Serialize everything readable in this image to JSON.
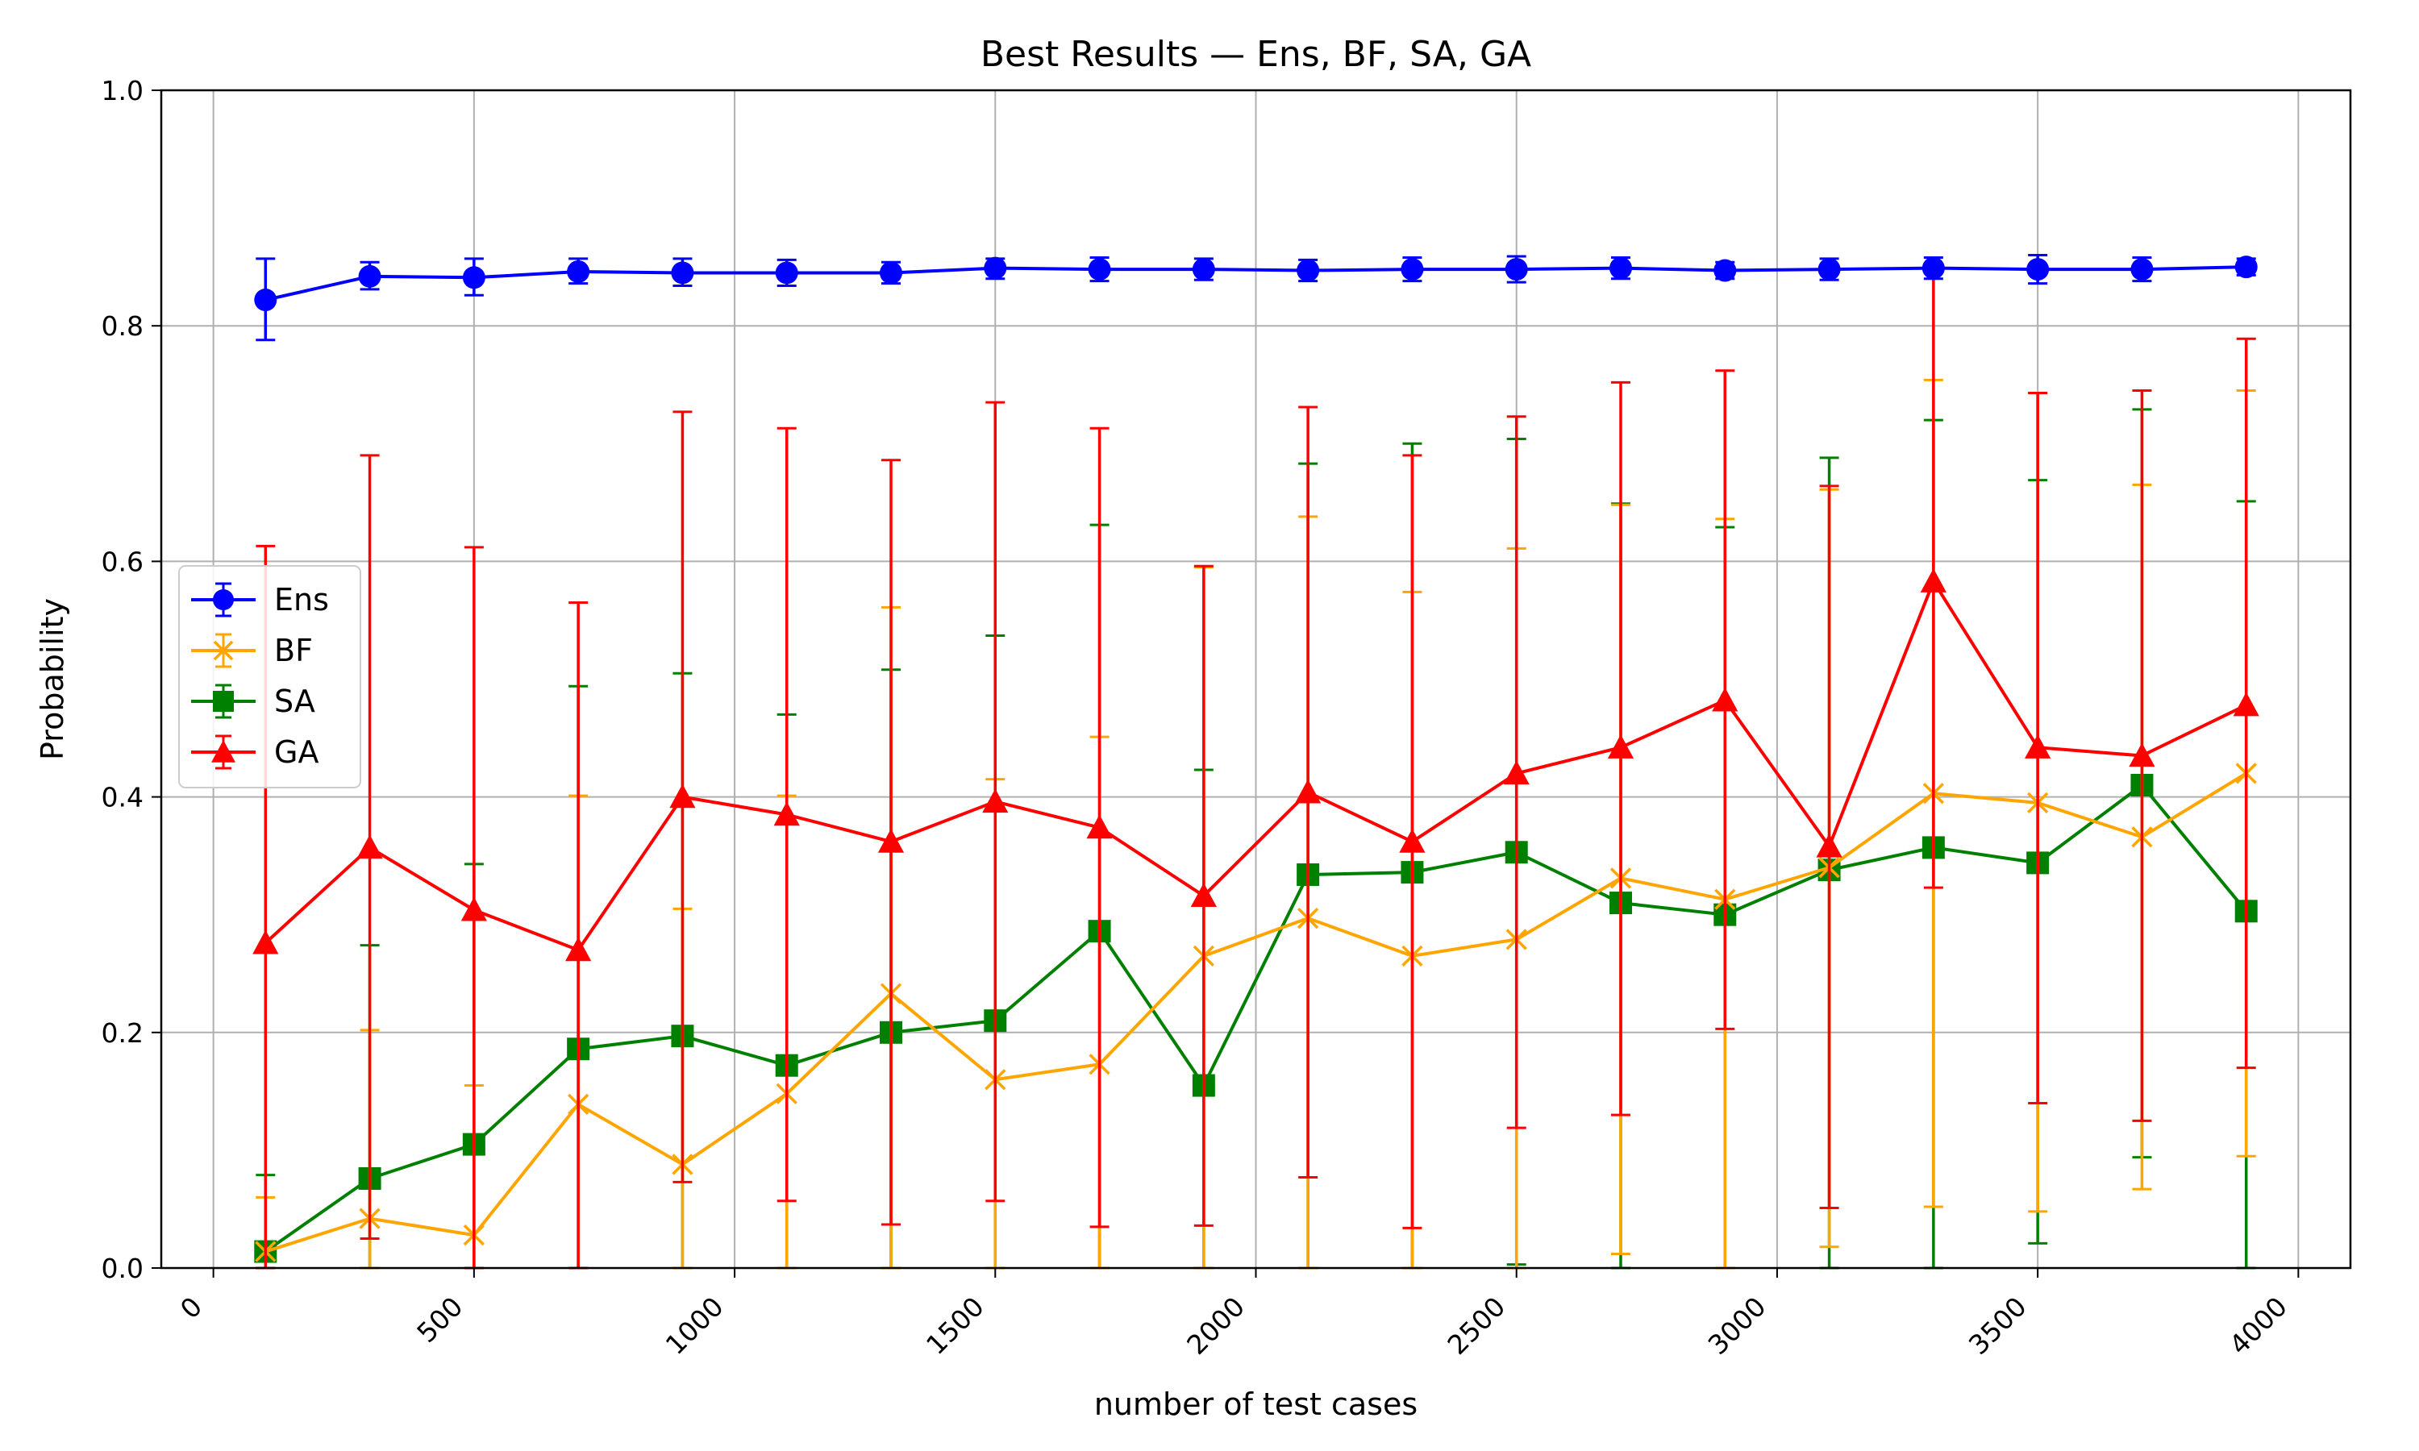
{
  "chart_data": {
    "type": "line",
    "title": "Best Results — Ens, BF, SA, GA",
    "xlabel": "number of test cases",
    "ylabel": "Probability",
    "xlim": [
      -100,
      4100
    ],
    "ylim": [
      0.0,
      1.0
    ],
    "xticks": [
      0,
      500,
      1000,
      1500,
      2000,
      2500,
      3000,
      3500,
      4000
    ],
    "yticks": [
      0.0,
      0.2,
      0.4,
      0.6,
      0.8,
      1.0
    ],
    "grid": true,
    "legend_position": "center-left",
    "x": [
      100,
      300,
      500,
      700,
      900,
      1100,
      1300,
      1500,
      1700,
      1900,
      2100,
      2300,
      2500,
      2700,
      2900,
      3100,
      3300,
      3500,
      3700,
      3900
    ],
    "series": [
      {
        "name": "Ens",
        "color": "#0000ff",
        "marker": "circle",
        "values": [
          0.822,
          0.842,
          0.841,
          0.846,
          0.845,
          0.845,
          0.845,
          0.849,
          0.848,
          0.848,
          0.847,
          0.848,
          0.848,
          0.849,
          0.847,
          0.848,
          0.849,
          0.848,
          0.848,
          0.85
        ],
        "err_low": [
          0.788,
          0.831,
          0.826,
          0.836,
          0.834,
          0.834,
          0.836,
          0.84,
          0.838,
          0.839,
          0.838,
          0.838,
          0.837,
          0.84,
          0.84,
          0.839,
          0.84,
          0.836,
          0.838,
          0.843
        ],
        "err_high": [
          0.857,
          0.854,
          0.857,
          0.857,
          0.857,
          0.856,
          0.854,
          0.857,
          0.858,
          0.857,
          0.856,
          0.858,
          0.859,
          0.858,
          0.854,
          0.857,
          0.858,
          0.86,
          0.858,
          0.857
        ]
      },
      {
        "name": "BF",
        "color": "#ffa500",
        "marker": "x",
        "values": [
          0.014,
          0.042,
          0.028,
          0.139,
          0.088,
          0.148,
          0.233,
          0.16,
          0.173,
          0.265,
          0.297,
          0.265,
          0.279,
          0.331,
          0.313,
          0.34,
          0.403,
          0.395,
          0.366,
          0.42
        ],
        "err_low": [
          0.0,
          0.0,
          0.0,
          0.0,
          0.0,
          0.0,
          0.0,
          0.0,
          0.0,
          0.0,
          0.0,
          0.0,
          0.0,
          0.012,
          0.0,
          0.018,
          0.052,
          0.048,
          0.067,
          0.095
        ],
        "err_high": [
          0.06,
          0.202,
          0.155,
          0.401,
          0.305,
          0.401,
          0.561,
          0.415,
          0.451,
          0.595,
          0.638,
          0.574,
          0.611,
          0.648,
          0.636,
          0.661,
          0.754,
          0.743,
          0.665,
          0.745
        ]
      },
      {
        "name": "SA",
        "color": "#008000",
        "marker": "square",
        "values": [
          0.014,
          0.076,
          0.105,
          0.186,
          0.197,
          0.172,
          0.2,
          0.21,
          0.286,
          0.155,
          0.334,
          0.336,
          0.353,
          0.31,
          0.3,
          0.338,
          0.357,
          0.344,
          0.41,
          0.303
        ],
        "err_low": [
          0.0,
          0.0,
          0.0,
          0.0,
          0.0,
          0.0,
          0.0,
          0.0,
          0.0,
          0.0,
          0.0,
          0.0,
          0.003,
          0.0,
          0.0,
          0.0,
          0.0,
          0.021,
          0.094,
          0.0
        ],
        "err_high": [
          0.079,
          0.274,
          0.343,
          0.494,
          0.505,
          0.47,
          0.508,
          0.537,
          0.631,
          0.423,
          0.683,
          0.7,
          0.704,
          0.649,
          0.629,
          0.688,
          0.72,
          0.669,
          0.729,
          0.651
        ]
      },
      {
        "name": "GA",
        "color": "#ff0000",
        "marker": "triangle",
        "values": [
          0.276,
          0.357,
          0.304,
          0.27,
          0.4,
          0.385,
          0.362,
          0.396,
          0.374,
          0.316,
          0.404,
          0.362,
          0.42,
          0.442,
          0.482,
          0.358,
          0.583,
          0.442,
          0.435,
          0.478
        ],
        "err_low": [
          0.0,
          0.025,
          0.0,
          0.0,
          0.073,
          0.057,
          0.037,
          0.057,
          0.035,
          0.036,
          0.077,
          0.034,
          0.119,
          0.13,
          0.203,
          0.051,
          0.323,
          0.14,
          0.125,
          0.17
        ],
        "err_high": [
          0.613,
          0.69,
          0.612,
          0.565,
          0.727,
          0.713,
          0.686,
          0.735,
          0.713,
          0.596,
          0.731,
          0.69,
          0.723,
          0.752,
          0.762,
          0.664,
          0.845,
          0.743,
          0.745,
          0.789
        ]
      }
    ]
  }
}
